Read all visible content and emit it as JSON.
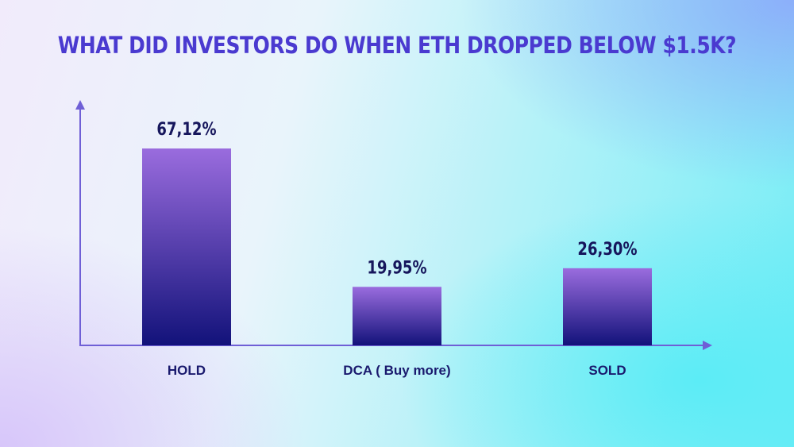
{
  "colors": {
    "title": "#4a3ad0",
    "axis": "#6f5fd6",
    "bar_top": "#9a6cde",
    "bar_bottom": "#12127a",
    "label": "#1a1a6e"
  },
  "chart_data": {
    "type": "bar",
    "title": "WHAT DID INVESTORS DO WHEN ETH DROPPED BELOW $1.5K?",
    "categories": [
      "HOLD",
      "DCA ( Buy more)",
      "SOLD"
    ],
    "values": [
      67.12,
      19.95,
      26.3
    ],
    "value_labels": [
      "67,12%",
      "19,95%",
      "26,30%"
    ],
    "xlabel": "",
    "ylabel": "",
    "ylim": [
      0,
      100
    ],
    "grid": false,
    "legend": "none"
  }
}
